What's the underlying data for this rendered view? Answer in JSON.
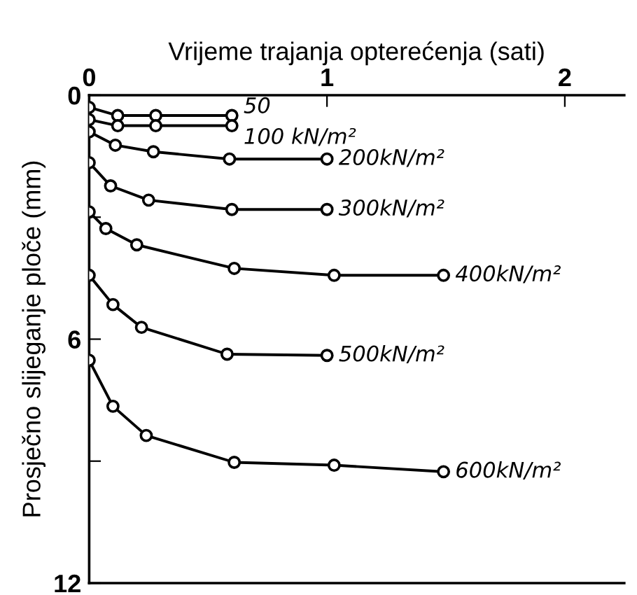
{
  "chart_data": {
    "type": "line",
    "xlabel": "Vrijeme trajanja opterećenja (sati)",
    "ylabel": "Prosječno slijeganje ploče (mm)",
    "xlim": [
      0,
      2.25
    ],
    "xticks": [
      0,
      1,
      2
    ],
    "ylim": [
      12,
      0
    ],
    "yticks": [
      0,
      {
        "value": 3,
        "label": null
      },
      6,
      {
        "value": 9,
        "label": null
      },
      12
    ],
    "grid": false,
    "legend": false,
    "marker": "circle",
    "line_style": "solid",
    "series": [
      {
        "name": "50",
        "color": "#000000",
        "x": [
          0,
          0.12,
          0.28,
          0.6
        ],
        "values": [
          0.3,
          0.5,
          0.5,
          0.5
        ]
      },
      {
        "name": "100 kN/m²",
        "color": "#000000",
        "x": [
          0,
          0.12,
          0.28,
          0.6
        ],
        "values": [
          0.6,
          0.75,
          0.75,
          0.75
        ]
      },
      {
        "name": "200kN/m²",
        "color": "#000000",
        "x": [
          0,
          0.11,
          0.27,
          0.59,
          1.0
        ],
        "values": [
          0.9,
          1.23,
          1.39,
          1.57,
          1.57
        ]
      },
      {
        "name": "300kN/m²",
        "color": "#000000",
        "x": [
          0,
          0.09,
          0.25,
          0.6,
          1.0
        ],
        "values": [
          1.66,
          2.23,
          2.58,
          2.81,
          2.81
        ]
      },
      {
        "name": "400kN/m²",
        "color": "#000000",
        "x": [
          0,
          0.07,
          0.2,
          0.61,
          1.03,
          1.49
        ],
        "values": [
          2.87,
          3.28,
          3.68,
          4.26,
          4.43,
          4.43
        ]
      },
      {
        "name": "500kN/m²",
        "color": "#000000",
        "x": [
          0,
          0.1,
          0.22,
          0.58,
          1.0
        ],
        "values": [
          4.43,
          5.15,
          5.71,
          6.37,
          6.4
        ]
      },
      {
        "name": "600kN/m²",
        "color": "#000000",
        "x": [
          0,
          0.1,
          0.24,
          0.61,
          1.03,
          1.49
        ],
        "values": [
          6.52,
          7.65,
          8.37,
          9.03,
          9.1,
          9.26
        ]
      }
    ]
  }
}
